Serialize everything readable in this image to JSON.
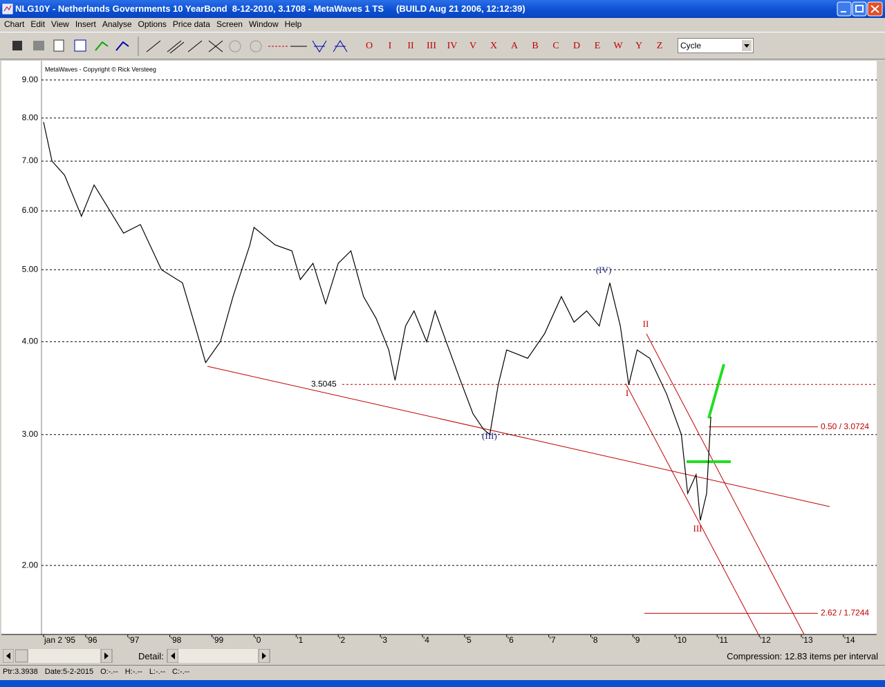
{
  "window": {
    "title": "NLG10Y - Netherlands Governments 10 YearBond  8-12-2010, 3.1708 - MetaWaves 1 TS     (BUILD Aug 21 2006, 12:12:39)"
  },
  "menu": [
    "Chart",
    "Edit",
    "View",
    "Insert",
    "Analyse",
    "Options",
    "Price data",
    "Screen",
    "Window",
    "Help"
  ],
  "toolbar": {
    "wave_buttons": [
      "O",
      "I",
      "II",
      "III",
      "IV",
      "V",
      "X",
      "A",
      "B",
      "C",
      "D",
      "E",
      "W",
      "Y",
      "Z"
    ],
    "dropdown": "Cycle"
  },
  "chart_data": {
    "type": "line",
    "copyright": "MetaWaves - Copyright © Rick Versteeg",
    "color": "#000000",
    "x": [
      1995.0,
      1995.2,
      1995.5,
      1995.9,
      1996.2,
      1996.5,
      1996.9,
      1997.3,
      1997.8,
      1998.3,
      1998.6,
      1998.85,
      1999.2,
      1999.5,
      1999.9,
      2000.0,
      2000.5,
      2000.9,
      2001.1,
      2001.4,
      2001.7,
      2002.0,
      2002.3,
      2002.6,
      2002.9,
      2003.2,
      2003.35,
      2003.6,
      2003.8,
      2004.1,
      2004.3,
      2004.6,
      2004.9,
      2005.2,
      2005.45,
      2005.6,
      2005.8,
      2006.0,
      2006.5,
      2006.9,
      2007.3,
      2007.6,
      2007.9,
      2008.2,
      2008.45,
      2008.7,
      2008.9,
      2009.1,
      2009.4,
      2009.8,
      2010.15,
      2010.3,
      2010.5,
      2010.6,
      2010.75,
      2010.85
    ],
    "values": [
      7.9,
      7.0,
      6.7,
      5.9,
      6.5,
      6.1,
      5.6,
      5.75,
      5.0,
      4.8,
      4.2,
      3.75,
      4.0,
      4.6,
      5.4,
      5.7,
      5.4,
      5.3,
      4.85,
      5.1,
      4.5,
      5.1,
      5.3,
      4.6,
      4.3,
      3.9,
      3.55,
      4.2,
      4.4,
      4.0,
      4.4,
      3.95,
      3.55,
      3.2,
      3.05,
      3.0,
      3.5,
      3.9,
      3.8,
      4.1,
      4.6,
      4.25,
      4.4,
      4.2,
      4.8,
      4.2,
      3.5,
      3.9,
      3.8,
      3.4,
      3.0,
      2.5,
      2.65,
      2.3,
      2.5,
      3.17
    ],
    "log_scale": true,
    "grid": true,
    "ylim": [
      1.615,
      9.55
    ],
    "yticks": [
      {
        "value": 2,
        "label": "2.00"
      },
      {
        "value": 3,
        "label": "3.00"
      },
      {
        "value": 4,
        "label": "4.00"
      },
      {
        "value": 5,
        "label": "5.00"
      },
      {
        "value": 6,
        "label": "6.00"
      },
      {
        "value": 7,
        "label": "7.00"
      },
      {
        "value": 8,
        "label": "8.00"
      },
      {
        "value": 9,
        "label": "9.00"
      }
    ],
    "xlim": [
      1995,
      2014.79
    ],
    "xticks": [
      {
        "value": 1995,
        "label": "jan 2 '95"
      },
      {
        "value": 1996,
        "label": "'96"
      },
      {
        "value": 1997,
        "label": "'97"
      },
      {
        "value": 1998,
        "label": "'98"
      },
      {
        "value": 1999,
        "label": "'99"
      },
      {
        "value": 2000,
        "label": "'0"
      },
      {
        "value": 2001,
        "label": "'1"
      },
      {
        "value": 2002,
        "label": "'2"
      },
      {
        "value": 2003,
        "label": "'3"
      },
      {
        "value": 2004,
        "label": "'4"
      },
      {
        "value": 2005,
        "label": "'5"
      },
      {
        "value": 2006,
        "label": "'6"
      },
      {
        "value": 2007,
        "label": "'7"
      },
      {
        "value": 2008,
        "label": "'8"
      },
      {
        "value": 2009,
        "label": "'9"
      },
      {
        "value": 2010,
        "label": "'10"
      },
      {
        "value": 2011,
        "label": "'11"
      },
      {
        "value": 2012,
        "label": "'12"
      },
      {
        "value": 2013,
        "label": "'13"
      },
      {
        "value": 2014,
        "label": "'14"
      }
    ],
    "levels": [
      {
        "value": 3.5045,
        "label": "3.5045"
      },
      {
        "value": 3.0724,
        "label": "0.50 / 3.0724"
      },
      {
        "value": 1.7244,
        "label": "2.62 / 1.7244"
      }
    ],
    "wave_labels": [
      "(IV)",
      "(III)",
      "I",
      "II",
      "III"
    ]
  },
  "scrollbar": {
    "detail": "Detail:",
    "compression": "Compression: 12.83 items per interval"
  },
  "status": [
    "Ptr:3.3938",
    "Date:5-2-2015",
    "O:-.--",
    "H:-.--",
    "L:-.--",
    "C:-.--"
  ]
}
